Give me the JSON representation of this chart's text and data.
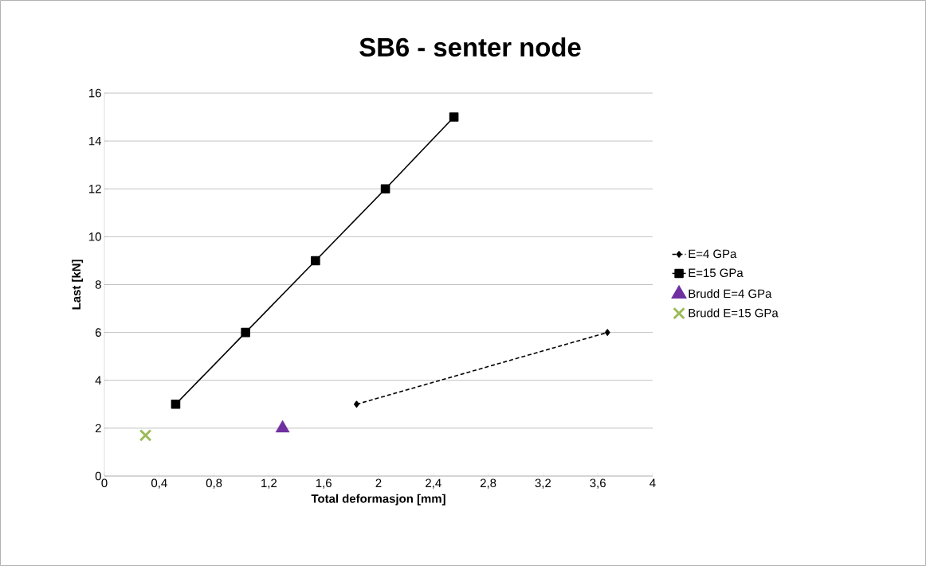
{
  "chart_data": {
    "type": "line",
    "title": "SB6 - senter node",
    "xlabel": "Total deformasjon [mm]",
    "ylabel": "Last [kN]",
    "xlim": [
      0,
      4
    ],
    "ylim": [
      0,
      16
    ],
    "xticks": [
      0,
      {
        "value": 0.4,
        "label": "0,4"
      },
      {
        "value": 0.8,
        "label": "0,8"
      },
      {
        "value": 1.2,
        "label": "1,2"
      },
      {
        "value": 1.6,
        "label": "1,6"
      },
      2,
      {
        "value": 2.4,
        "label": "2,4"
      },
      {
        "value": 2.8,
        "label": "2,8"
      },
      {
        "value": 3.2,
        "label": "3,2"
      },
      {
        "value": 3.6,
        "label": "3,6"
      },
      4
    ],
    "yticks": [
      0,
      2,
      4,
      6,
      8,
      10,
      12,
      14,
      16
    ],
    "grid": "y",
    "legend": "right",
    "series": [
      {
        "name": "E=4 GPa",
        "color": "#000000",
        "marker": "diamond",
        "line_style": "dashed",
        "x": [
          1.84,
          3.67
        ],
        "values": [
          3,
          6
        ]
      },
      {
        "name": "E=15 GPa",
        "color": "#000000",
        "marker": "square",
        "line_style": "solid",
        "x": [
          0.52,
          1.03,
          1.54,
          2.05,
          2.55
        ],
        "values": [
          3,
          6,
          9,
          12,
          15
        ]
      },
      {
        "name": "Brudd E=4 GPa",
        "type": "scatter",
        "color": "#7030a0",
        "marker": "triangle",
        "x": [
          1.3
        ],
        "values": [
          2.0
        ]
      },
      {
        "name": "Brudd E=15 GPa",
        "type": "scatter",
        "color": "#9bbb59",
        "marker": "cross",
        "x": [
          0.3
        ],
        "values": [
          1.7
        ]
      }
    ]
  }
}
